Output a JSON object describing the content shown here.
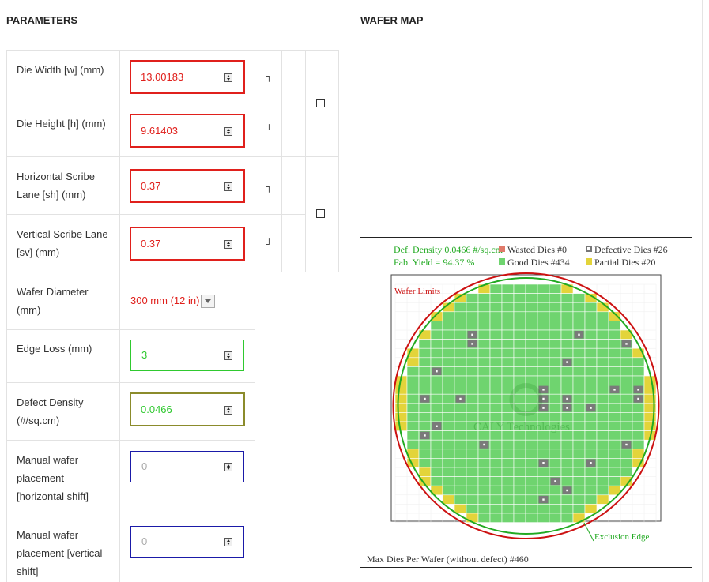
{
  "headers": {
    "parameters": "PARAMETERS",
    "wafer_map": "WAFER MAP"
  },
  "params": {
    "die_width": {
      "label": "Die Width [w] (mm)",
      "value": "13.00183"
    },
    "die_height": {
      "label": "Die Height [h] (mm)",
      "value": "9.61403"
    },
    "scribe_h": {
      "label": [
        "Horizontal Scribe",
        "Lane [sh] (mm)"
      ],
      "value": "0.37"
    },
    "scribe_v": {
      "label": [
        "Vertical Scribe Lane",
        "[sv] (mm)"
      ],
      "value": "0.37"
    },
    "wafer_diam": {
      "label": [
        "Wafer Diameter",
        "(mm)"
      ],
      "value": "300 mm (12 in)"
    },
    "edge_loss": {
      "label": "Edge Loss (mm)",
      "value": "3"
    },
    "defect": {
      "label": [
        "Defect Density",
        "(#/sq.cm)"
      ],
      "value": "0.0466"
    },
    "shift_h": {
      "label": [
        "Manual wafer",
        "placement",
        "[horizontal shift]"
      ],
      "placeholder": "0"
    },
    "shift_v": {
      "label": [
        "Manual wafer",
        "placement [vertical",
        "shift]"
      ],
      "placeholder": "0"
    }
  },
  "brackets": {
    "top": "┐",
    "bottom": "┘"
  },
  "wafer_map": {
    "def_density": "Def. Density 0.0466 #/sq.cm",
    "fab_yield": "Fab. Yield = 94.37 %",
    "wasted": "Wasted Dies  #0",
    "good": "Good Dies #434",
    "defective": "Defective Dies  #26",
    "partial": "Partial Dies #20",
    "wafer_limits": "Wafer Limits",
    "exclusion_edge": "Exclusion Edge",
    "watermark": "CALY Technologies",
    "max_dies": "Max Dies Per Wafer (without defect) #460",
    "colors": {
      "good": "#6fd46f",
      "partial": "#e3d43a",
      "defective": "#7a7a7a",
      "wasted": "#e07a6a",
      "wafer_limit": "#cc1111",
      "exclusion": "#22aa22"
    }
  }
}
